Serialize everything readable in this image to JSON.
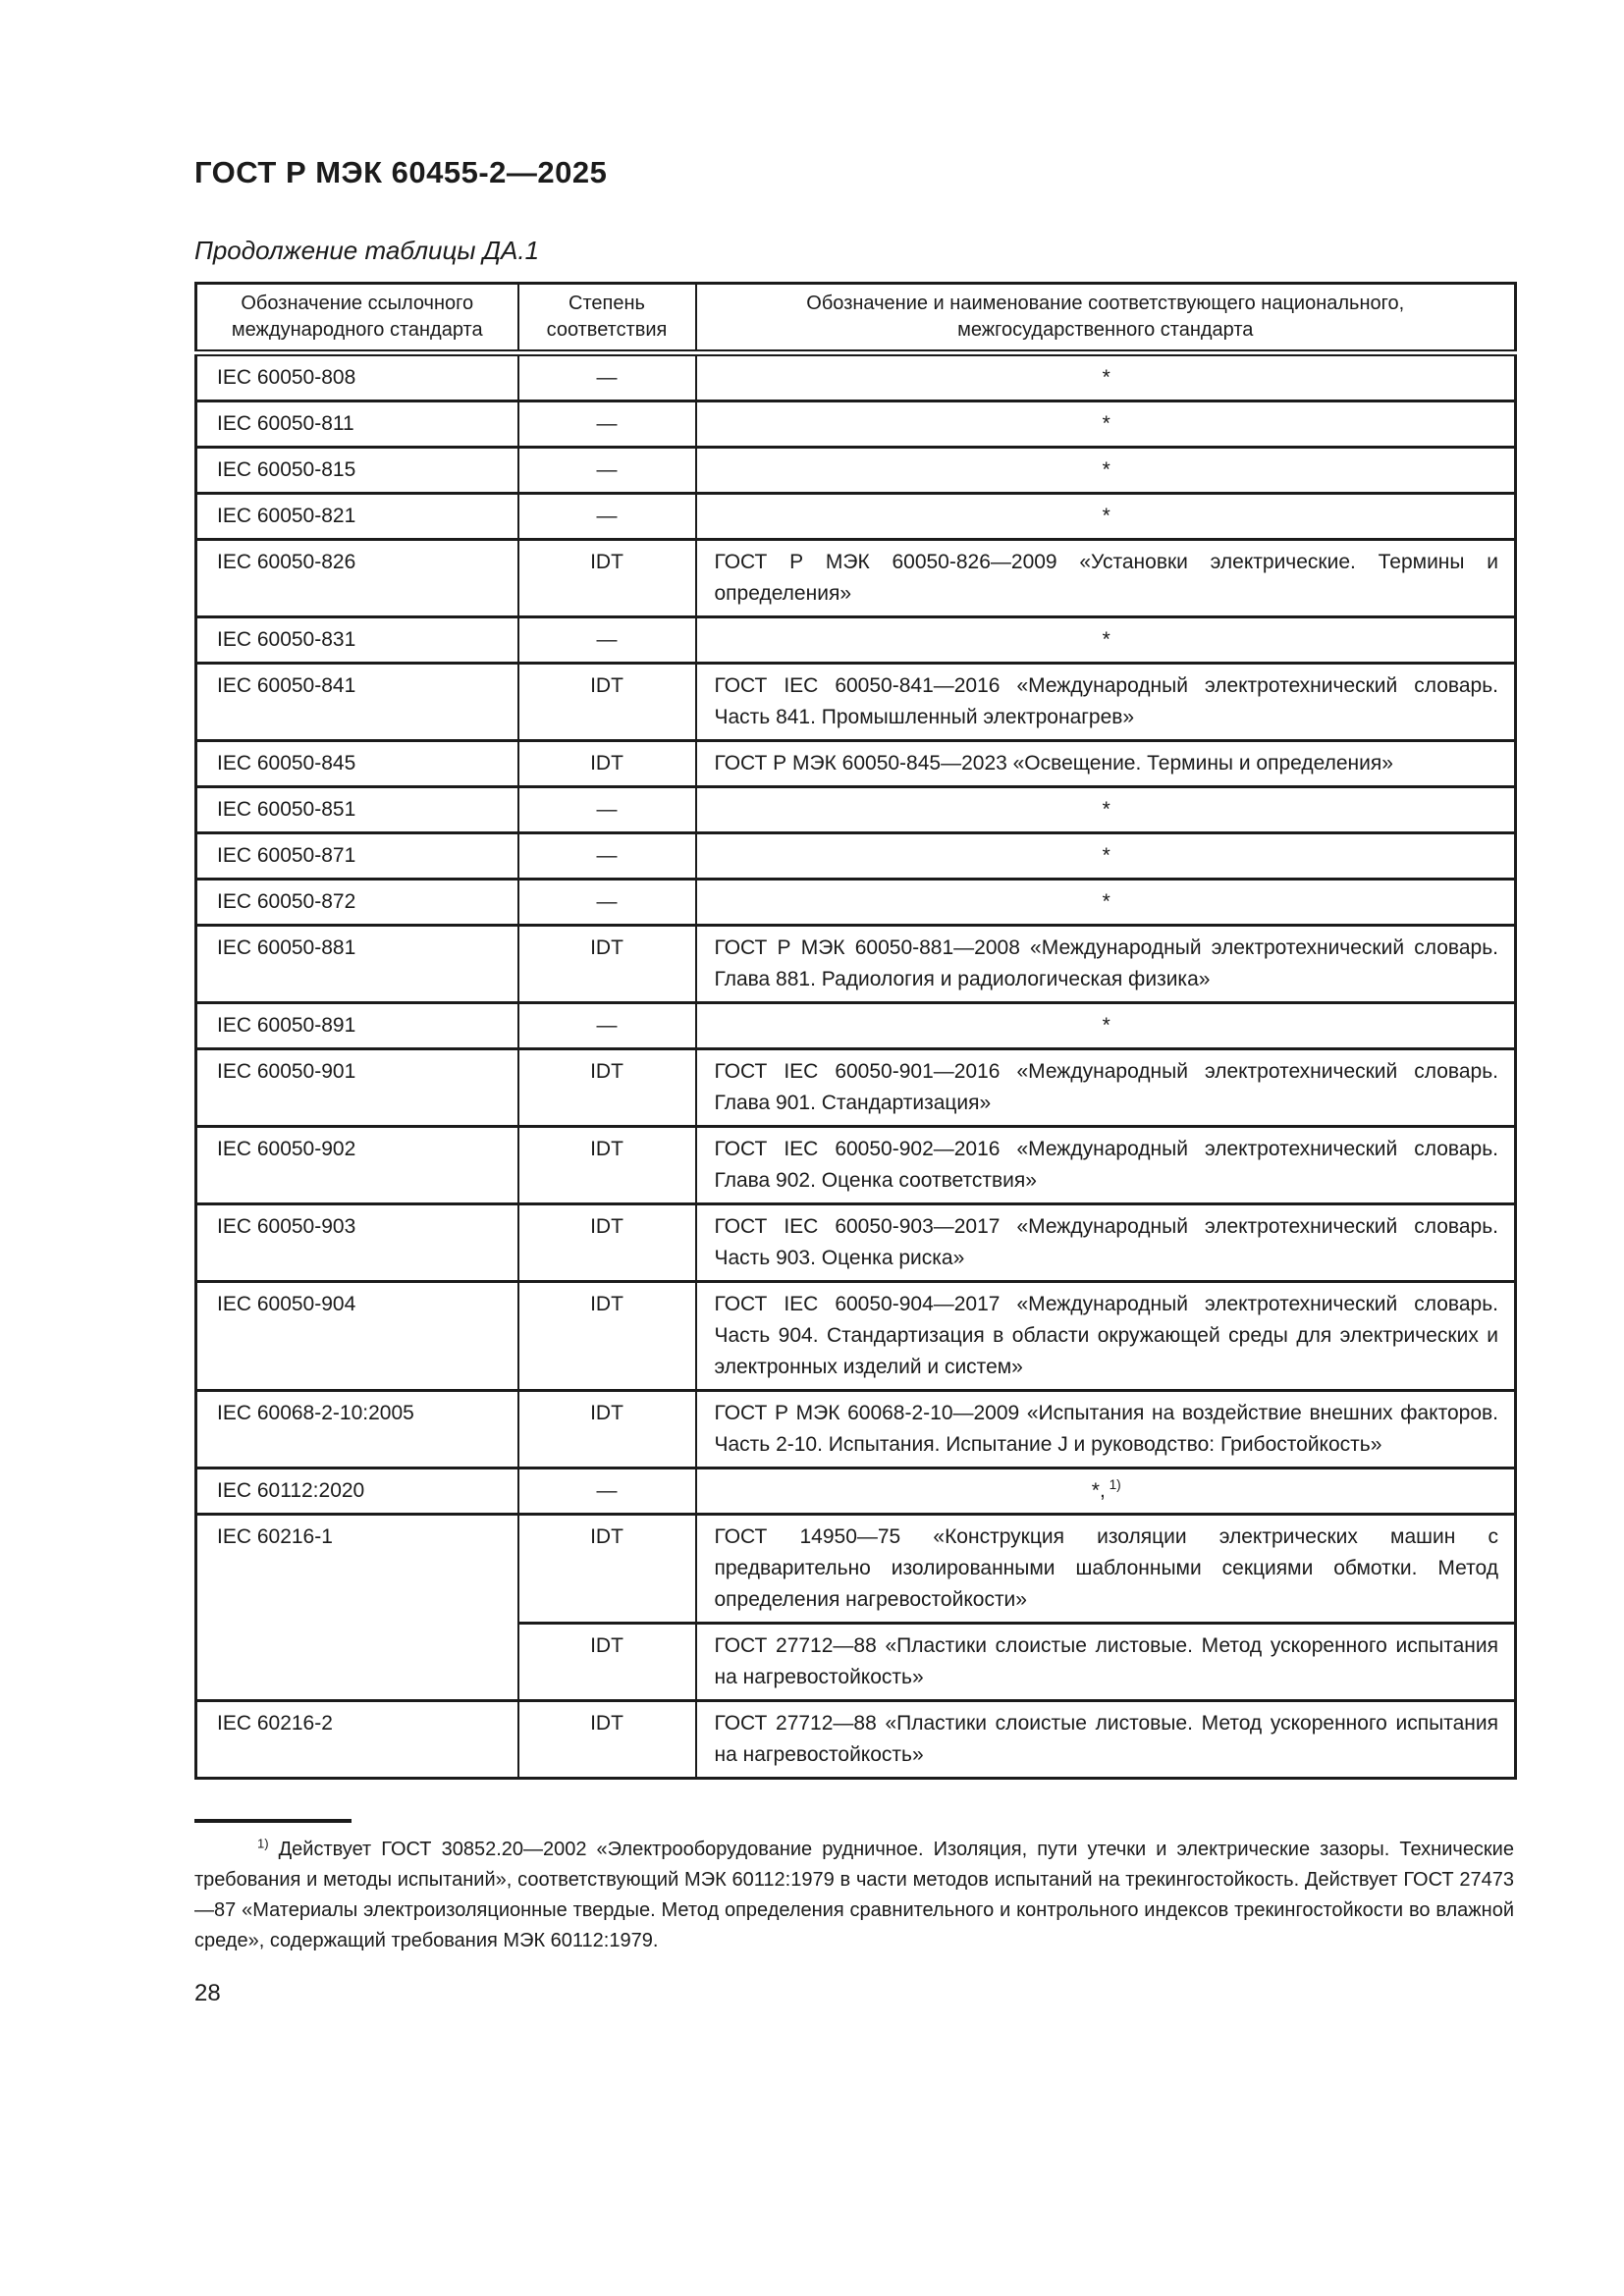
{
  "page": {
    "doc_code": "ГОСТ Р МЭК 60455-2—2025",
    "table_caption": "Продолжение таблицы ДА.1",
    "page_number": "28"
  },
  "table": {
    "headers": [
      "Обозначение ссылочного международного стандарта",
      "Степень соответствия",
      "Обозначение и наименование соответствующего национального, межгосударственного стандарта"
    ],
    "rows": [
      {
        "ref": "IEC 60050-808",
        "entries": [
          {
            "degree": "—",
            "text": "*",
            "center": true
          }
        ]
      },
      {
        "ref": "IEC 60050-811",
        "entries": [
          {
            "degree": "—",
            "text": "*",
            "center": true
          }
        ]
      },
      {
        "ref": "IEC 60050-815",
        "entries": [
          {
            "degree": "—",
            "text": "*",
            "center": true
          }
        ]
      },
      {
        "ref": "IEC 60050-821",
        "entries": [
          {
            "degree": "—",
            "text": "*",
            "center": true
          }
        ]
      },
      {
        "ref": "IEC 60050-826",
        "entries": [
          {
            "degree": "IDT",
            "text": "ГОСТ Р МЭК 60050-826—2009 «Установки электрические. Термины и определения»",
            "center": false
          }
        ]
      },
      {
        "ref": "IEC 60050-831",
        "entries": [
          {
            "degree": "—",
            "text": "*",
            "center": true
          }
        ]
      },
      {
        "ref": "IEC 60050-841",
        "entries": [
          {
            "degree": "IDT",
            "text": "ГОСТ IEC 60050-841—2016 «Международный электротехнический словарь. Часть 841. Промышленный электронагрев»",
            "center": false
          }
        ]
      },
      {
        "ref": "IEC 60050-845",
        "entries": [
          {
            "degree": "IDT",
            "text": "ГОСТ Р МЭК 60050-845—2023 «Освещение. Термины и определения»",
            "center": false
          }
        ]
      },
      {
        "ref": "IEC 60050-851",
        "entries": [
          {
            "degree": "—",
            "text": "*",
            "center": true
          }
        ]
      },
      {
        "ref": "IEC 60050-871",
        "entries": [
          {
            "degree": "—",
            "text": "*",
            "center": true
          }
        ]
      },
      {
        "ref": "IEC 60050-872",
        "entries": [
          {
            "degree": "—",
            "text": "*",
            "center": true
          }
        ]
      },
      {
        "ref": "IEC 60050-881",
        "entries": [
          {
            "degree": "IDT",
            "text": "ГОСТ Р МЭК 60050-881—2008 «Международный электротехнический словарь. Глава 881. Радиология и радиологическая физика»",
            "center": false
          }
        ]
      },
      {
        "ref": "IEC 60050-891",
        "entries": [
          {
            "degree": "—",
            "text": "*",
            "center": true
          }
        ]
      },
      {
        "ref": "IEC 60050-901",
        "entries": [
          {
            "degree": "IDT",
            "text": "ГОСТ IEC 60050-901—2016 «Международный электротехнический словарь. Глава 901. Стандартизация»",
            "center": false
          }
        ]
      },
      {
        "ref": "IEC 60050-902",
        "entries": [
          {
            "degree": "IDT",
            "text": "ГОСТ IEC 60050-902—2016 «Международный электротехнический словарь. Глава 902. Оценка соответствия»",
            "center": false
          }
        ]
      },
      {
        "ref": "IEC 60050-903",
        "entries": [
          {
            "degree": "IDT",
            "text": "ГОСТ IEC 60050-903—2017 «Международный электротехнический словарь. Часть 903. Оценка риска»",
            "center": false
          }
        ]
      },
      {
        "ref": "IEC 60050-904",
        "entries": [
          {
            "degree": "IDT",
            "text": "ГОСТ IEC 60050-904—2017 «Международный электротехнический словарь. Часть 904. Стандартизация в области окружающей среды для электрических и электронных изделий и систем»",
            "center": false
          }
        ]
      },
      {
        "ref": "IEC 60068-2-10:2005",
        "entries": [
          {
            "degree": "IDT",
            "text": "ГОСТ Р МЭК 60068-2-10—2009 «Испытания на воздействие внешних факторов. Часть 2-10. Испытания. Испытание J и руководство: Грибостойкость»",
            "center": false
          }
        ]
      },
      {
        "ref": "IEC 60112:2020",
        "entries": [
          {
            "degree": "—",
            "text": "*,",
            "marker": "1)",
            "center": true
          }
        ]
      },
      {
        "ref": "IEC 60216-1",
        "entries": [
          {
            "degree": "IDT",
            "text": "ГОСТ 14950—75 «Конструкция изоляции электрических машин с предварительно изолированными шаблонными секциями обмотки. Метод определения нагревостойкости»",
            "center": false
          },
          {
            "degree": "IDT",
            "text": "ГОСТ 27712—88 «Пластики слоистые листовые. Метод ускоренного испытания на нагревостойкость»",
            "center": false
          }
        ]
      },
      {
        "ref": "IEC 60216-2",
        "entries": [
          {
            "degree": "IDT",
            "text": "ГОСТ 27712—88 «Пластики слоистые листовые. Метод ускоренного испытания на нагревостойкость»",
            "center": false
          }
        ]
      }
    ]
  },
  "footnote": {
    "marker": "1)",
    "text": "Действует ГОСТ 30852.20—2002 «Электрооборудование рудничное. Изоляция, пути утечки и электрические зазоры. Технические требования и методы испытаний», соответствующий МЭК 60112:1979 в части методов испытаний на трекингостойкость. Действует ГОСТ 27473—87 «Материалы электроизоляционные твердые. Метод определения сравнительного и контрольного индексов трекингостойкости во влажной среде», содержащий требования МЭК 60112:1979."
  }
}
